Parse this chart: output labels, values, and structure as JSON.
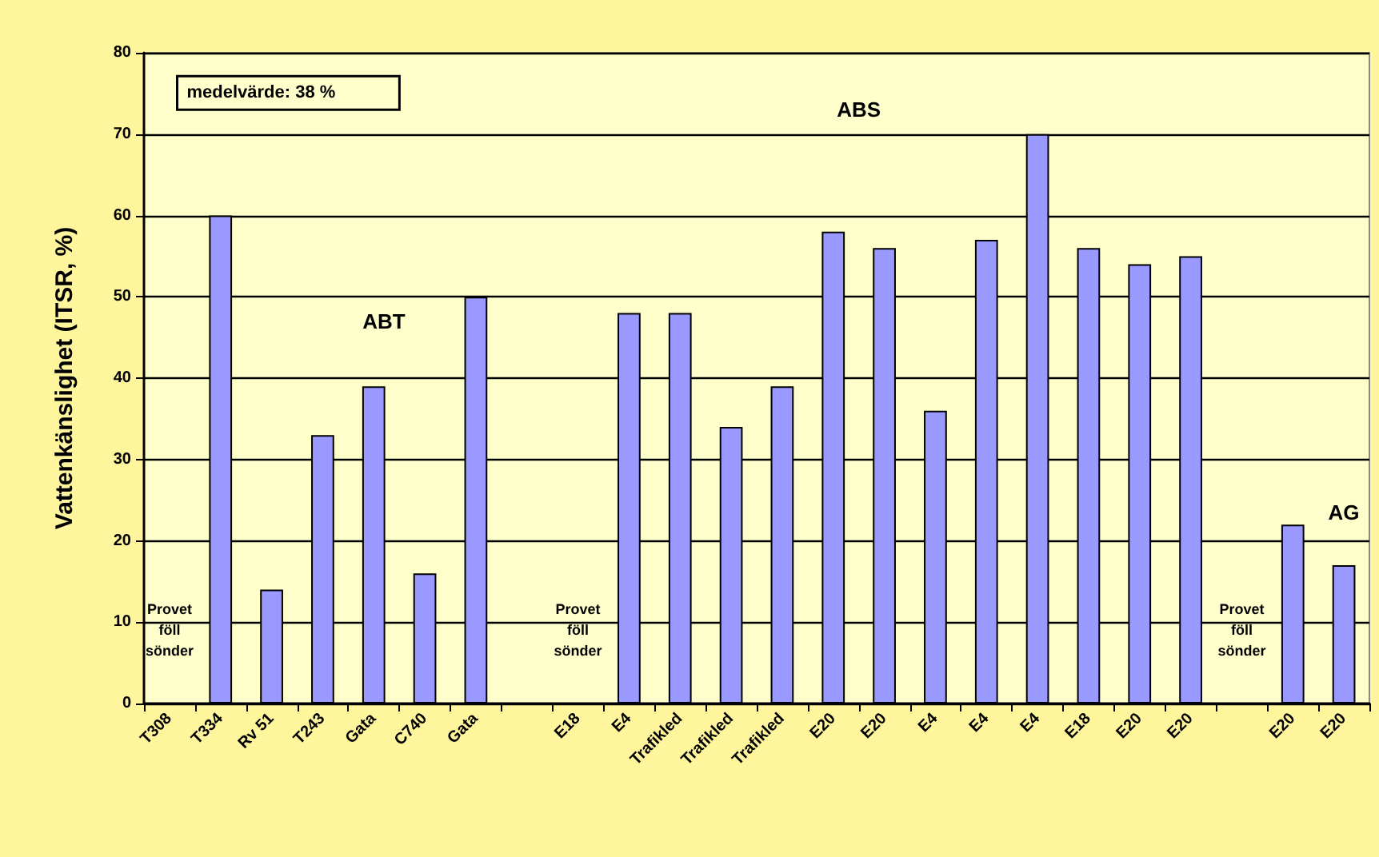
{
  "chart_data": {
    "type": "bar",
    "ylabel": "Vattenkänslighet (ITSR, %)",
    "categories": [
      "T308",
      "T334",
      "Rv 51",
      "T243",
      "Gata",
      "C740",
      "Gata",
      null,
      "E18",
      "E4",
      "Trafikled",
      "Trafikled",
      "Trafikled",
      "E20",
      "E20",
      "E4",
      "E4",
      "E4",
      "E18",
      "E20",
      "E20",
      null,
      "E20",
      "E20"
    ],
    "values": [
      null,
      60,
      14,
      33,
      39,
      16,
      50,
      null,
      null,
      48,
      48,
      34,
      39,
      58,
      56,
      36,
      57,
      70,
      56,
      54,
      55,
      null,
      22,
      17
    ],
    "color": "#9999ff",
    "ylim": [
      0,
      80
    ],
    "yticks": [
      0,
      10,
      20,
      30,
      40,
      50,
      60,
      70,
      80
    ],
    "grid": "y",
    "annotations": [
      "medelvärde: 38 %",
      "ABT",
      "ABS",
      "AG",
      "Provet föll sönder",
      "Provet föll sönder",
      "Provet föll sönder"
    ]
  }
}
